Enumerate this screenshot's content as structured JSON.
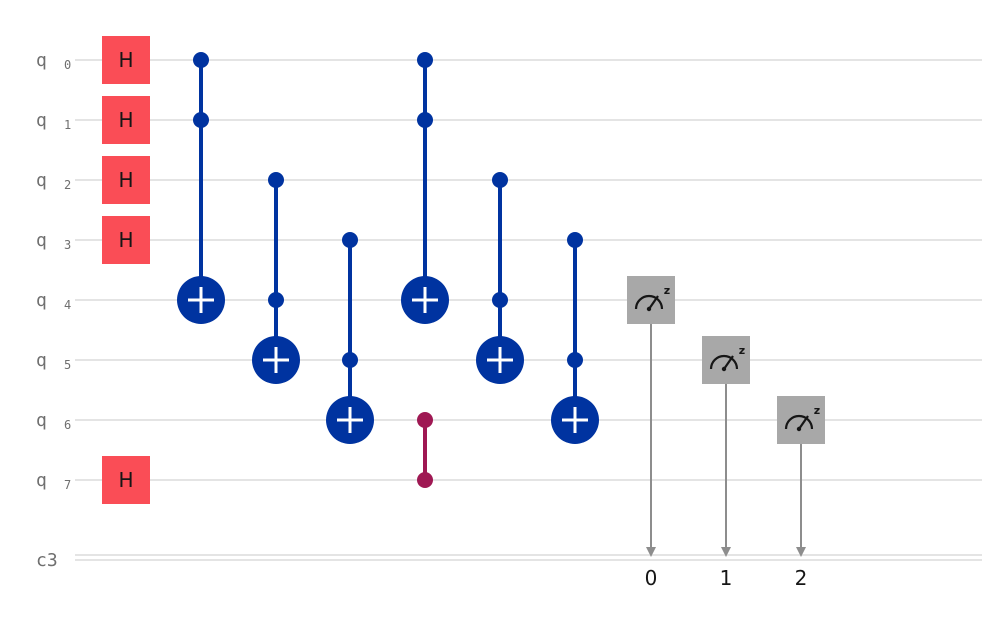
{
  "circuit": {
    "qubit_prefix": "q",
    "qubit_indices": [
      "0",
      "1",
      "2",
      "3",
      "4",
      "5",
      "6",
      "7"
    ],
    "classical_register": "c3",
    "hadamard_label": "H",
    "hadamard_qubits": [
      0,
      1,
      2,
      3,
      7
    ],
    "colors": {
      "cnot": "#0033a0",
      "cz": "#9f1853",
      "hadamard": "#fa4d56",
      "measure": "#a8a8a8"
    },
    "gates": [
      {
        "type": "cx",
        "controls": [
          0,
          1
        ],
        "target": 4
      },
      {
        "type": "cx",
        "controls": [
          2,
          4
        ],
        "target": 5
      },
      {
        "type": "cx",
        "controls": [
          3,
          5
        ],
        "target": 6
      },
      {
        "type": "cx",
        "controls": [
          0,
          1
        ],
        "target": 4
      },
      {
        "type": "cz",
        "qubits": [
          6,
          7
        ]
      },
      {
        "type": "cx",
        "controls": [
          2,
          4
        ],
        "target": 5
      },
      {
        "type": "cx",
        "controls": [
          3,
          5
        ],
        "target": 6
      }
    ],
    "measurements": [
      {
        "qubit": 4,
        "bit": "0",
        "basis": "z"
      },
      {
        "qubit": 5,
        "bit": "1",
        "basis": "z"
      },
      {
        "qubit": 6,
        "bit": "2",
        "basis": "z"
      }
    ]
  }
}
